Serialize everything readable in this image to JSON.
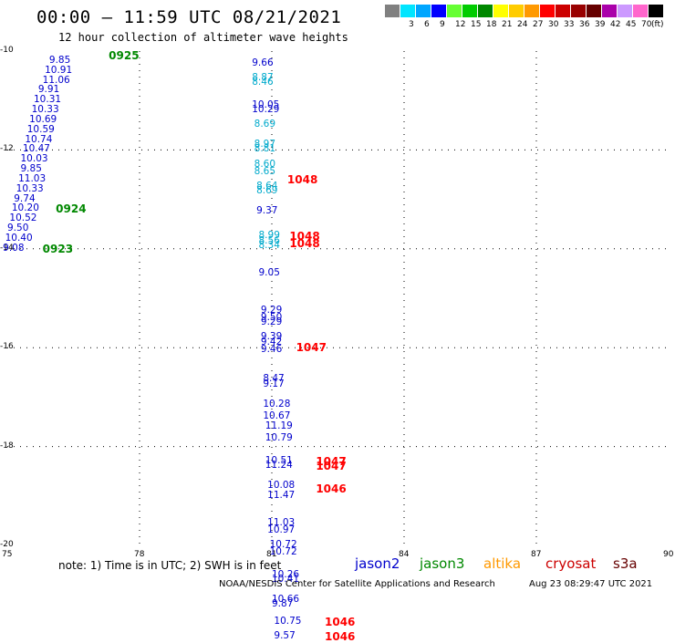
{
  "header": {
    "title": "00:00 – 11:59 UTC 08/21/2021",
    "subtitle": "12 hour collection of altimeter wave heights"
  },
  "legend": {
    "unit": "(ft)",
    "bins": [
      {
        "label": "",
        "color": "#808080"
      },
      {
        "label": "3",
        "color": "#00e5ff"
      },
      {
        "label": "6",
        "color": "#00a6ff"
      },
      {
        "label": "9",
        "color": "#0000ff"
      },
      {
        "label": "12",
        "color": "#66ff33"
      },
      {
        "label": "15",
        "color": "#00cc00"
      },
      {
        "label": "18",
        "color": "#008800"
      },
      {
        "label": "21",
        "color": "#ffff00"
      },
      {
        "label": "24",
        "color": "#ffcc00"
      },
      {
        "label": "27",
        "color": "#ff9900"
      },
      {
        "label": "30",
        "color": "#ff0000"
      },
      {
        "label": "33",
        "color": "#cc0000"
      },
      {
        "label": "36",
        "color": "#990000"
      },
      {
        "label": "39",
        "color": "#660000"
      },
      {
        "label": "42",
        "color": "#aa00aa"
      },
      {
        "label": "45",
        "color": "#cc99ff"
      },
      {
        "label": "70",
        "color": "#ff66cc"
      },
      {
        "label": "",
        "color": "#000000"
      }
    ]
  },
  "axes": {
    "lat_labels": [
      "-10",
      "-12",
      "-14",
      "-16",
      "-18",
      "-20"
    ],
    "lon_labels": [
      "75",
      "78",
      "81",
      "84",
      "87",
      "90"
    ]
  },
  "colors": {
    "jason2": "#0000cc",
    "jason3": "#008800",
    "altika": "#ff9900",
    "cryosat": "#cc0000",
    "s3a": "#660000",
    "light": "#00aacc",
    "pass": "#ff0000",
    "pass_green": "#008800"
  },
  "observations": [
    {
      "lon": 75.95,
      "lat": -10.2,
      "text": "9.85",
      "c": "jason2"
    },
    {
      "lon": 75.85,
      "lat": -10.4,
      "text": "10.91",
      "c": "jason2"
    },
    {
      "lon": 75.8,
      "lat": -10.6,
      "text": "11.06",
      "c": "jason2"
    },
    {
      "lon": 75.7,
      "lat": -10.8,
      "text": "9.91",
      "c": "jason2"
    },
    {
      "lon": 75.6,
      "lat": -11.0,
      "text": "10.31",
      "c": "jason2"
    },
    {
      "lon": 75.55,
      "lat": -11.2,
      "text": "10.33",
      "c": "jason2"
    },
    {
      "lon": 75.5,
      "lat": -11.4,
      "text": "10.69",
      "c": "jason2"
    },
    {
      "lon": 75.45,
      "lat": -11.6,
      "text": "10.59",
      "c": "jason2"
    },
    {
      "lon": 75.4,
      "lat": -11.8,
      "text": "10.74",
      "c": "jason2"
    },
    {
      "lon": 75.35,
      "lat": -12.0,
      "text": "10.47",
      "c": "jason2"
    },
    {
      "lon": 75.3,
      "lat": -12.2,
      "text": "10.03",
      "c": "jason2"
    },
    {
      "lon": 75.3,
      "lat": -12.4,
      "text": "9.85",
      "c": "jason2"
    },
    {
      "lon": 75.25,
      "lat": -12.6,
      "text": "11.03",
      "c": "jason2"
    },
    {
      "lon": 75.2,
      "lat": -12.8,
      "text": "10.33",
      "c": "jason2"
    },
    {
      "lon": 75.15,
      "lat": -13.0,
      "text": "9.74",
      "c": "jason2"
    },
    {
      "lon": 75.1,
      "lat": -13.2,
      "text": "10.20",
      "c": "jason2"
    },
    {
      "lon": 75.05,
      "lat": -13.4,
      "text": "10.52",
      "c": "jason2"
    },
    {
      "lon": 75.0,
      "lat": -13.6,
      "text": "9.50",
      "c": "jason2"
    },
    {
      "lon": 74.95,
      "lat": -13.8,
      "text": "10.40",
      "c": "jason2"
    },
    {
      "lon": 74.9,
      "lat": -14.0,
      "text": "9.08",
      "c": "jason2"
    },
    {
      "lon": 80.55,
      "lat": -10.25,
      "text": "9.66",
      "c": "jason2"
    },
    {
      "lon": 80.55,
      "lat": -10.55,
      "text": "8.87",
      "c": "light"
    },
    {
      "lon": 80.55,
      "lat": -10.65,
      "text": "8.46",
      "c": "light"
    },
    {
      "lon": 80.55,
      "lat": -11.1,
      "text": "10.05",
      "c": "jason2"
    },
    {
      "lon": 80.55,
      "lat": -11.2,
      "text": "10.29",
      "c": "jason2"
    },
    {
      "lon": 80.6,
      "lat": -11.5,
      "text": "8.69",
      "c": "light"
    },
    {
      "lon": 80.6,
      "lat": -11.9,
      "text": "8.97",
      "c": "light"
    },
    {
      "lon": 80.6,
      "lat": -12.0,
      "text": "8.81",
      "c": "light"
    },
    {
      "lon": 80.6,
      "lat": -12.3,
      "text": "8.60",
      "c": "light"
    },
    {
      "lon": 80.6,
      "lat": -12.45,
      "text": "8.65",
      "c": "light"
    },
    {
      "lon": 80.65,
      "lat": -12.75,
      "text": "8.64",
      "c": "light"
    },
    {
      "lon": 80.65,
      "lat": -12.85,
      "text": "8.69",
      "c": "light"
    },
    {
      "lon": 80.65,
      "lat": -13.25,
      "text": "9.37",
      "c": "jason2"
    },
    {
      "lon": 80.7,
      "lat": -13.75,
      "text": "8.99",
      "c": "light"
    },
    {
      "lon": 80.7,
      "lat": -13.85,
      "text": "8.56",
      "c": "light"
    },
    {
      "lon": 80.7,
      "lat": -13.95,
      "text": "8.34",
      "c": "light"
    },
    {
      "lon": 80.7,
      "lat": -14.5,
      "text": "9.05",
      "c": "jason2"
    },
    {
      "lon": 80.75,
      "lat": -15.25,
      "text": "9.29",
      "c": "jason2"
    },
    {
      "lon": 80.75,
      "lat": -15.4,
      "text": "9.50",
      "c": "jason2"
    },
    {
      "lon": 80.75,
      "lat": -15.5,
      "text": "9.29",
      "c": "jason2"
    },
    {
      "lon": 80.75,
      "lat": -15.8,
      "text": "9.39",
      "c": "jason2"
    },
    {
      "lon": 80.75,
      "lat": -15.9,
      "text": "9.42",
      "c": "jason2"
    },
    {
      "lon": 80.75,
      "lat": -16.05,
      "text": "9.46",
      "c": "jason2"
    },
    {
      "lon": 80.8,
      "lat": -16.65,
      "text": "8.47",
      "c": "jason2"
    },
    {
      "lon": 80.8,
      "lat": -16.75,
      "text": "9.17",
      "c": "jason2"
    },
    {
      "lon": 80.8,
      "lat": -17.15,
      "text": "10.28",
      "c": "jason2"
    },
    {
      "lon": 80.8,
      "lat": -17.4,
      "text": "10.67",
      "c": "jason2"
    },
    {
      "lon": 80.85,
      "lat": -17.6,
      "text": "11.19",
      "c": "jason2"
    },
    {
      "lon": 80.85,
      "lat": -17.85,
      "text": "10.79",
      "c": "jason2"
    },
    {
      "lon": 80.85,
      "lat": -18.3,
      "text": "10.51",
      "c": "jason2"
    },
    {
      "lon": 80.85,
      "lat": -18.4,
      "text": "11.24",
      "c": "jason2"
    },
    {
      "lon": 80.9,
      "lat": -18.8,
      "text": "10.08",
      "c": "jason2"
    },
    {
      "lon": 80.9,
      "lat": -19.0,
      "text": "11.47",
      "c": "jason2"
    },
    {
      "lon": 80.9,
      "lat": -19.55,
      "text": "11.03",
      "c": "jason2"
    },
    {
      "lon": 80.9,
      "lat": -19.7,
      "text": "10.97",
      "c": "jason2"
    },
    {
      "lon": 80.95,
      "lat": -20.0,
      "text": "10.72",
      "c": "jason2"
    },
    {
      "lon": 80.95,
      "lat": -20.15,
      "text": "10.72",
      "c": "jason2"
    },
    {
      "lon": 81.0,
      "lat": -20.6,
      "text": "10.26",
      "c": "jason2"
    },
    {
      "lon": 81.0,
      "lat": -20.7,
      "text": "10.41",
      "c": "jason2"
    },
    {
      "lon": 81.0,
      "lat": -21.1,
      "text": "10.66",
      "c": "jason2"
    },
    {
      "lon": 81.0,
      "lat": -21.2,
      "text": "9.87",
      "c": "jason2"
    },
    {
      "lon": 81.05,
      "lat": -21.55,
      "text": "10.75",
      "c": "jason2"
    },
    {
      "lon": 81.05,
      "lat": -21.85,
      "text": "9.57",
      "c": "jason2"
    }
  ],
  "passes": [
    {
      "lon": 77.3,
      "lat": -10.1,
      "text": "0925",
      "c": "pass_green"
    },
    {
      "lon": 76.1,
      "lat": -13.2,
      "text": "0924",
      "c": "pass_green"
    },
    {
      "lon": 75.8,
      "lat": -14.0,
      "text": "0923",
      "c": "pass_green"
    },
    {
      "lon": 81.35,
      "lat": -12.6,
      "text": "1048",
      "c": "pass"
    },
    {
      "lon": 81.4,
      "lat": -13.75,
      "text": "1048",
      "c": "pass"
    },
    {
      "lon": 81.4,
      "lat": -13.9,
      "text": "1048",
      "c": "pass"
    },
    {
      "lon": 81.55,
      "lat": -16.0,
      "text": "1047",
      "c": "pass"
    },
    {
      "lon": 82.0,
      "lat": -18.3,
      "text": "1047",
      "c": "pass"
    },
    {
      "lon": 82.0,
      "lat": -18.4,
      "text": "1047",
      "c": "pass"
    },
    {
      "lon": 82.0,
      "lat": -18.85,
      "text": "1046",
      "c": "pass"
    },
    {
      "lon": 82.2,
      "lat": -21.55,
      "text": "1046",
      "c": "pass"
    },
    {
      "lon": 82.2,
      "lat": -21.85,
      "text": "1046",
      "c": "pass"
    }
  ],
  "footer": {
    "note": "note: 1) Time is in UTC; 2) SWH is in feet",
    "satellites": [
      {
        "name": "jason2",
        "c": "jason2"
      },
      {
        "name": "jason3",
        "c": "jason3"
      },
      {
        "name": "altika",
        "c": "altika"
      },
      {
        "name": "cryosat",
        "c": "cryosat"
      },
      {
        "name": "s3a",
        "c": "s3a"
      }
    ],
    "credit": "NOAA/NESDIS Center for Satellite Applications and Research",
    "timestamp": "Aug 23 08:29:47 UTC 2021"
  }
}
